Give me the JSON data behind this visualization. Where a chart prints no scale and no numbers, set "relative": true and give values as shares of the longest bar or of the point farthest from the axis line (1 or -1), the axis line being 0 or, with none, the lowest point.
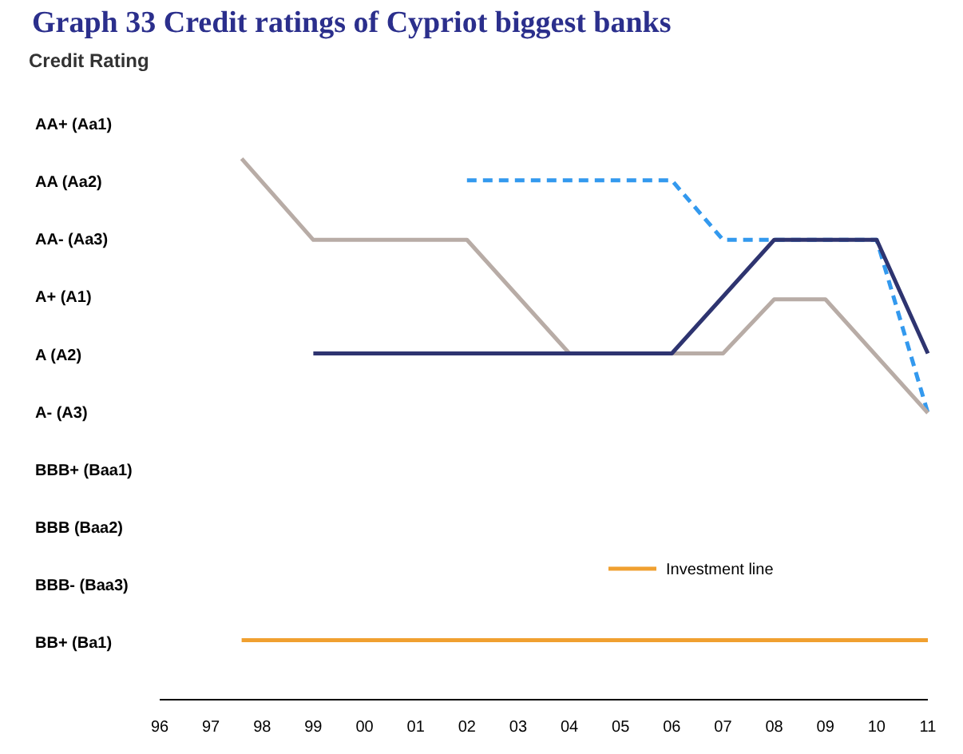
{
  "chart_data": {
    "type": "line",
    "title": "Graph 33 Credit ratings of Cypriot biggest banks",
    "ylabel": "Credit Rating",
    "relative": true,
    "annotations": [
      "AA+ (Aa1)",
      "AA (Aa2)",
      "AA- (Aa3)",
      "A+ (A1)",
      "A (A2)",
      "A- (A3)",
      "BBB+ (Baa1)",
      "BBB (Baa2)",
      "BBB- (Baa3)",
      "BB+ (Ba1)"
    ],
    "xlim": [
      1996,
      2011
    ],
    "xticks": [
      {
        "value": 1996,
        "label": "96"
      },
      {
        "value": 1997,
        "label": "97"
      },
      {
        "value": 1998,
        "label": "98"
      },
      {
        "value": 1999,
        "label": "99"
      },
      {
        "value": 2000,
        "label": "00"
      },
      {
        "value": 2001,
        "label": "01"
      },
      {
        "value": 2002,
        "label": "02"
      },
      {
        "value": 2003,
        "label": "03"
      },
      {
        "value": 2004,
        "label": "04"
      },
      {
        "value": 2005,
        "label": "05"
      },
      {
        "value": 2006,
        "label": "06"
      },
      {
        "value": 2007,
        "label": "07"
      },
      {
        "value": 2008,
        "label": "08"
      },
      {
        "value": 2009,
        "label": "09"
      },
      {
        "value": 2010,
        "label": "10"
      },
      {
        "value": 2011,
        "label": "11"
      }
    ],
    "legend": "bottom right",
    "marker": "none",
    "series": [
      {
        "color": "#3399ee",
        "line_style": "dashed",
        "x": [
          2002,
          2006,
          2007,
          2010,
          2011
        ],
        "values": [
          0.96,
          0.96,
          0.85,
          0.85,
          0.53
        ]
      },
      {
        "color": "#b8aca6",
        "line_style": "solid",
        "x": [
          1997.6,
          1999,
          2002,
          2004,
          2007,
          2008,
          2009,
          2011
        ],
        "values": [
          1,
          0.85,
          0.85,
          0.64,
          0.64,
          0.74,
          0.74,
          0.53
        ]
      },
      {
        "color": "#2e3470",
        "line_style": "solid",
        "x": [
          1999,
          2006,
          2008,
          2010,
          2011
        ],
        "values": [
          0.64,
          0.64,
          0.85,
          0.85,
          0.64
        ]
      },
      {
        "name": "Investment line",
        "color": "#f0a030",
        "line_style": "solid",
        "x": [
          1997.6,
          2011
        ],
        "values": [
          0.11,
          0.11
        ]
      }
    ]
  }
}
